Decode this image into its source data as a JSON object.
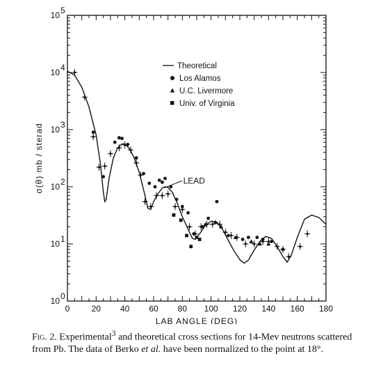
{
  "chart_data": {
    "type": "scatter",
    "xlabel": "LAB  ANGLE  (DEG)",
    "ylabel": "σ(θ) mb / sterad",
    "xlim": [
      0,
      180
    ],
    "ylim": [
      1,
      100000
    ],
    "yscale": "log",
    "x_ticks": [
      "0",
      "20",
      "40",
      "60",
      "80",
      "100",
      "120",
      "140",
      "160",
      "180"
    ],
    "y_ticks": [
      {
        "base": "10",
        "exp": "0"
      },
      {
        "base": "10",
        "exp": "1"
      },
      {
        "base": "10",
        "exp": "2"
      },
      {
        "base": "10",
        "exp": "3"
      },
      {
        "base": "10",
        "exp": "4"
      },
      {
        "base": "10",
        "exp": "5"
      }
    ],
    "legend_position": "top-right",
    "annotation": {
      "text": "LEAD",
      "x": 69,
      "y": 120
    },
    "series": [
      {
        "name": "Theoretical",
        "style": "line",
        "points": [
          [
            0,
            10500
          ],
          [
            5,
            9000
          ],
          [
            10,
            5500
          ],
          [
            15,
            2500
          ],
          [
            20,
            800
          ],
          [
            23,
            250
          ],
          [
            25,
            80
          ],
          [
            26,
            55
          ],
          [
            27,
            60
          ],
          [
            29,
            140
          ],
          [
            32,
            320
          ],
          [
            35,
            480
          ],
          [
            38,
            560
          ],
          [
            40,
            560
          ],
          [
            43,
            470
          ],
          [
            46,
            340
          ],
          [
            50,
            180
          ],
          [
            54,
            70
          ],
          [
            56,
            42
          ],
          [
            58,
            40
          ],
          [
            60,
            55
          ],
          [
            63,
            75
          ],
          [
            66,
            95
          ],
          [
            68,
            100
          ],
          [
            70,
            97
          ],
          [
            73,
            80
          ],
          [
            76,
            55
          ],
          [
            80,
            30
          ],
          [
            84,
            18
          ],
          [
            87,
            12.5
          ],
          [
            89,
            12
          ],
          [
            92,
            15
          ],
          [
            96,
            21
          ],
          [
            100,
            25
          ],
          [
            104,
            24
          ],
          [
            108,
            18
          ],
          [
            112,
            11.5
          ],
          [
            116,
            7.5
          ],
          [
            120,
            5.3
          ],
          [
            123,
            4.6
          ],
          [
            126,
            5.2
          ],
          [
            130,
            7.8
          ],
          [
            134,
            11
          ],
          [
            138,
            13.5
          ],
          [
            142,
            12.5
          ],
          [
            146,
            9
          ],
          [
            150,
            6
          ],
          [
            153,
            4.8
          ],
          [
            156,
            6.5
          ],
          [
            160,
            13
          ],
          [
            165,
            27
          ],
          [
            170,
            32
          ],
          [
            175,
            29
          ],
          [
            180,
            22
          ]
        ]
      },
      {
        "name": "Los Alamos",
        "style": "circle",
        "points": [
          [
            18,
            900
          ],
          [
            25,
            150
          ],
          [
            33,
            600
          ],
          [
            36,
            720
          ],
          [
            38,
            700
          ],
          [
            42,
            550
          ],
          [
            48,
            320
          ],
          [
            53,
            170
          ],
          [
            57,
            115
          ],
          [
            61,
            100
          ],
          [
            64,
            130
          ],
          [
            66,
            120
          ],
          [
            68,
            140
          ],
          [
            72,
            100
          ],
          [
            76,
            60
          ],
          [
            80,
            45
          ],
          [
            84,
            35
          ],
          [
            88,
            15
          ],
          [
            90,
            13
          ],
          [
            94,
            20
          ],
          [
            98,
            28
          ],
          [
            104,
            55
          ],
          [
            112,
            14
          ],
          [
            122,
            12
          ],
          [
            126,
            13
          ],
          [
            132,
            13
          ],
          [
            136,
            12
          ],
          [
            142,
            11
          ],
          [
            150,
            8
          ]
        ]
      },
      {
        "name": "U.C. Livermore",
        "style": "triangle",
        "points": [
          [
            96,
            22
          ],
          [
            103,
            24
          ],
          [
            107,
            20
          ],
          [
            117,
            13
          ],
          [
            128,
            11
          ],
          [
            134,
            10
          ],
          [
            140,
            10
          ]
        ]
      },
      {
        "name": "Univ. of Virginia",
        "style": "square",
        "points": [
          [
            74,
            32
          ],
          [
            79,
            26
          ],
          [
            83,
            14
          ],
          [
            86,
            9
          ],
          [
            92,
            12
          ]
        ]
      },
      {
        "name": "",
        "style": "errorbar-point",
        "points": [
          [
            5,
            10000
          ],
          [
            12,
            3700
          ],
          [
            18,
            750
          ],
          [
            22,
            220
          ],
          [
            26,
            230
          ],
          [
            30,
            380
          ],
          [
            36,
            480
          ],
          [
            40,
            540
          ],
          [
            44,
            440
          ],
          [
            48,
            260
          ],
          [
            51,
            160
          ],
          [
            54,
            55
          ],
          [
            58,
            45
          ],
          [
            62,
            70
          ],
          [
            66,
            70
          ],
          [
            70,
            75
          ],
          [
            75,
            45
          ],
          [
            80,
            40
          ],
          [
            85,
            20
          ],
          [
            89,
            15
          ],
          [
            93,
            20
          ],
          [
            97,
            22
          ],
          [
            101,
            22
          ],
          [
            106,
            22
          ],
          [
            110,
            16
          ],
          [
            114,
            14
          ],
          [
            118,
            13
          ],
          [
            124,
            10
          ],
          [
            130,
            10
          ],
          [
            136,
            11
          ],
          [
            140,
            11
          ],
          [
            146,
            9
          ],
          [
            150,
            8
          ],
          [
            154,
            6
          ],
          [
            162,
            9
          ],
          [
            167,
            15
          ]
        ]
      }
    ]
  },
  "caption": {
    "fig_label": "Fig. 2.",
    "text_1": " Experimental",
    "ref": "3",
    "text_2": " and theoretical cross sections for 14-Mev neutrons scattered from Pb. The data of Berko ",
    "etal": "et al.",
    "text_3": " have been normalized to the point at 18°."
  },
  "colors": {
    "ink": "#111111",
    "background": "#ffffff"
  }
}
